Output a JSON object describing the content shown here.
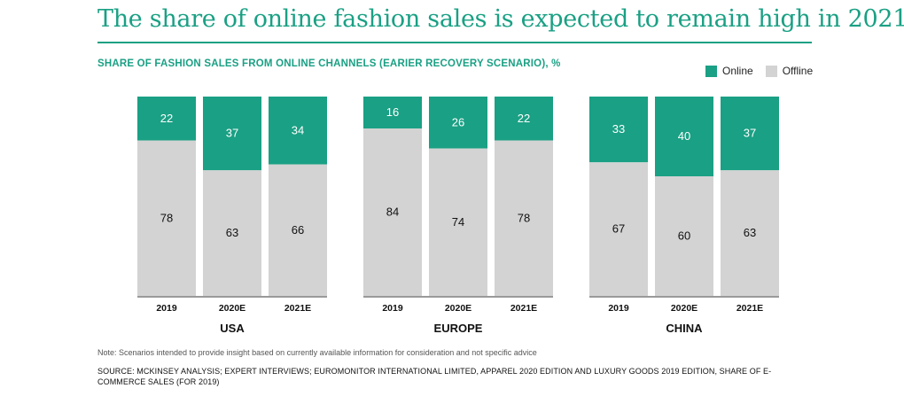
{
  "title": "The share of online fashion sales is expected to remain high in 2021",
  "subtitle": "SHARE OF FASHION SALES FROM ONLINE CHANNELS (EARIER RECOVERY SCENARIO), %",
  "legend": {
    "online_label": "Online",
    "offline_label": "Offline"
  },
  "colors": {
    "online": "#1aa084",
    "offline": "#d3d3d3",
    "accent": "#1aa084"
  },
  "note": "Note: Scenarios intended to provide insight based on currently available information for consideration and not specific advice",
  "source": "SOURCE: MCKINSEY ANALYSIS; EXPERT INTERVIEWS; EUROMONITOR INTERNATIONAL LIMITED, APPAREL 2020 EDITION AND LUXURY GOODS 2019 EDITION, SHARE OF E-COMMERCE SALES (FOR 2019)",
  "chart_data": {
    "type": "bar",
    "stacked": true,
    "percent": true,
    "ylim": [
      0,
      100
    ],
    "grid": false,
    "legend_position": "top-right",
    "groups": [
      {
        "name": "USA",
        "categories": [
          "2019",
          "2020E",
          "2021E"
        ],
        "series": [
          {
            "name": "Online",
            "values": [
              22,
              37,
              34
            ]
          },
          {
            "name": "Offline",
            "values": [
              78,
              63,
              66
            ]
          }
        ]
      },
      {
        "name": "EUROPE",
        "categories": [
          "2019",
          "2020E",
          "2021E"
        ],
        "series": [
          {
            "name": "Online",
            "values": [
              16,
              26,
              22
            ]
          },
          {
            "name": "Offline",
            "values": [
              84,
              74,
              78
            ]
          }
        ]
      },
      {
        "name": "CHINA",
        "categories": [
          "2019",
          "2020E",
          "2021E"
        ],
        "series": [
          {
            "name": "Online",
            "values": [
              33,
              40,
              37
            ]
          },
          {
            "name": "Offline",
            "values": [
              67,
              60,
              63
            ]
          }
        ]
      }
    ]
  }
}
